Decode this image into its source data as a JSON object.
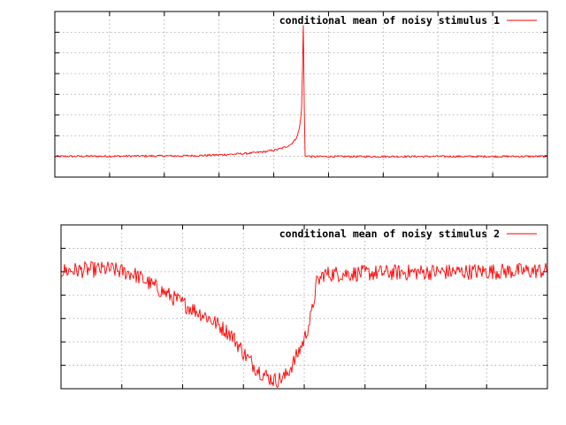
{
  "chart_data": [
    {
      "type": "line",
      "title": "",
      "xlabel": "",
      "ylabel": "",
      "legend_position": "top-right",
      "grid": true,
      "x_ticks": 9,
      "y_ticks": 8,
      "xlim": [
        0,
        1
      ],
      "ylim": [
        0,
        1
      ],
      "series": [
        {
          "name": "conditional mean of noisy stimulus 1",
          "color": "#ff0000",
          "points": [
            [
              0.0,
              0.125
            ],
            [
              0.25,
              0.128
            ],
            [
              0.3,
              0.13
            ],
            [
              0.33,
              0.134
            ],
            [
              0.36,
              0.138
            ],
            [
              0.39,
              0.143
            ],
            [
              0.41,
              0.148
            ],
            [
              0.43,
              0.155
            ],
            [
              0.45,
              0.165
            ],
            [
              0.465,
              0.178
            ],
            [
              0.478,
              0.195
            ],
            [
              0.488,
              0.225
            ],
            [
              0.494,
              0.265
            ],
            [
              0.498,
              0.32
            ],
            [
              0.501,
              0.42
            ],
            [
              0.503,
              0.68
            ],
            [
              0.505,
              1.0
            ],
            [
              0.507,
              0.12
            ],
            [
              0.509,
              0.13
            ],
            [
              0.52,
              0.124
            ],
            [
              1.0,
              0.125
            ]
          ],
          "noise": 0.006
        }
      ]
    },
    {
      "type": "line",
      "title": "",
      "xlabel": "",
      "ylabel": "",
      "legend_position": "top-right",
      "grid": true,
      "x_ticks": 8,
      "y_ticks": 7,
      "xlim": [
        0,
        1
      ],
      "ylim": [
        0,
        1
      ],
      "series": [
        {
          "name": "conditional mean of noisy stimulus 2",
          "color": "#ff0000",
          "points": [
            [
              0.0,
              0.72
            ],
            [
              0.1,
              0.73
            ],
            [
              0.15,
              0.7
            ],
            [
              0.2,
              0.61
            ],
            [
              0.25,
              0.52
            ],
            [
              0.3,
              0.44
            ],
            [
              0.35,
              0.33
            ],
            [
              0.38,
              0.2
            ],
            [
              0.4,
              0.13
            ],
            [
              0.42,
              0.08
            ],
            [
              0.44,
              0.05
            ],
            [
              0.46,
              0.07
            ],
            [
              0.48,
              0.17
            ],
            [
              0.5,
              0.3
            ],
            [
              0.515,
              0.45
            ],
            [
              0.525,
              0.64
            ],
            [
              0.54,
              0.7
            ],
            [
              0.7,
              0.71
            ],
            [
              1.0,
              0.72
            ]
          ],
          "noise": 0.05
        }
      ]
    }
  ]
}
